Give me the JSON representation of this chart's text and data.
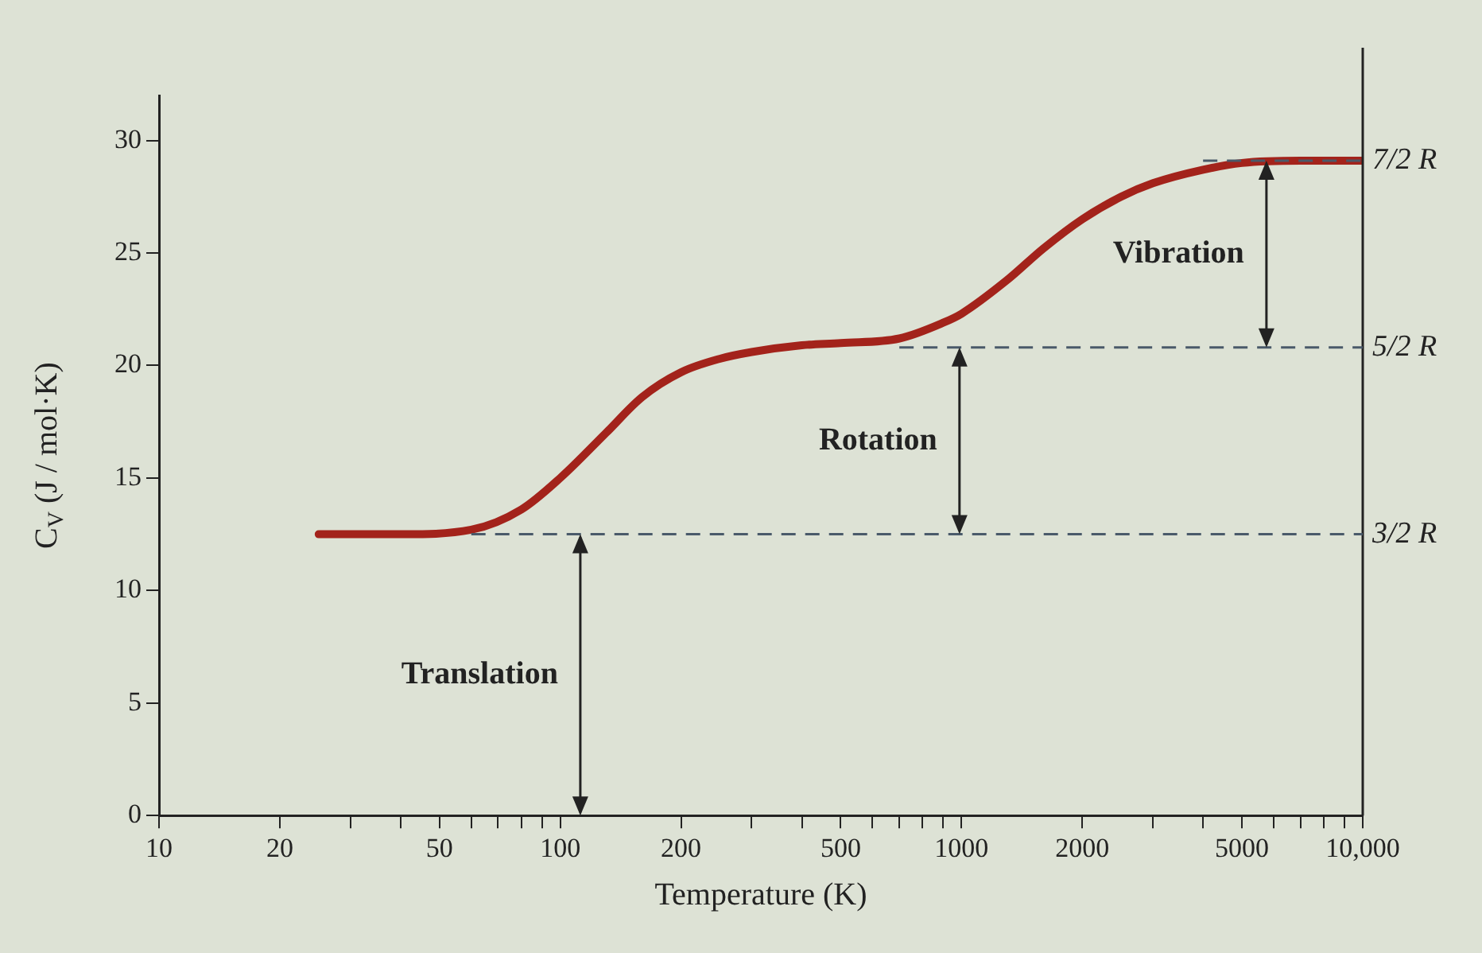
{
  "chart_data": {
    "type": "line",
    "xlabel": "Temperature (K)",
    "ylabel": "C$_{V}$ (J / mol·K)",
    "log": "x",
    "xlim": [
      10,
      10000
    ],
    "xticks": [
      10,
      20,
      {
        "value": 30,
        "label": null
      },
      {
        "value": 40,
        "label": null
      },
      50,
      {
        "value": 60,
        "label": null
      },
      {
        "value": 70,
        "label": null
      },
      {
        "value": 80,
        "label": null
      },
      {
        "value": 90,
        "label": null
      },
      100,
      200,
      {
        "value": 300,
        "label": null
      },
      {
        "value": 400,
        "label": null
      },
      500,
      {
        "value": 600,
        "label": null
      },
      {
        "value": 700,
        "label": null
      },
      {
        "value": 800,
        "label": null
      },
      {
        "value": 900,
        "label": null
      },
      1000,
      2000,
      {
        "value": 3000,
        "label": null
      },
      {
        "value": 4000,
        "label": null
      },
      5000,
      {
        "value": 6000,
        "label": null
      },
      {
        "value": 7000,
        "label": null
      },
      {
        "value": 8000,
        "label": null
      },
      {
        "value": 9000,
        "label": null
      },
      {
        "value": 10000,
        "label": "10,000"
      }
    ],
    "ylim": [
      0,
      32
    ],
    "yticks": [
      0,
      5,
      10,
      15,
      20,
      25,
      30
    ],
    "grid": false,
    "legend": false,
    "marker": "none",
    "series": [
      {
        "color": "#a3231b",
        "x": [
          25,
          40,
          60,
          80,
          100,
          130,
          160,
          200,
          250,
          300,
          400,
          500,
          700,
          900,
          1000,
          1300,
          1600,
          2000,
          2500,
          3000,
          4000,
          5000,
          7000,
          10000
        ],
        "values": [
          12.5,
          12.5,
          12.7,
          13.6,
          15,
          17,
          18.6,
          19.7,
          20.3,
          20.6,
          20.9,
          21,
          21.2,
          21.9,
          22.3,
          23.8,
          25.2,
          26.5,
          27.5,
          28.1,
          28.7,
          29,
          29.1,
          29.1
        ]
      }
    ],
    "ref_lines": [
      {
        "axis": "y",
        "value": 12.5,
        "label": "3/2 R",
        "color": "#4a5a6a",
        "line_style": "dashed"
      },
      {
        "axis": "y",
        "value": 20.8,
        "label": "5/2 R",
        "color": "#4a5a6a",
        "line_style": "dashed"
      },
      {
        "axis": "y",
        "value": 29.1,
        "label": "7/2 R",
        "color": "#4a5a6a",
        "line_style": "dashed"
      }
    ],
    "annotations": [
      "Translation",
      "Rotation",
      "Vibration"
    ]
  }
}
